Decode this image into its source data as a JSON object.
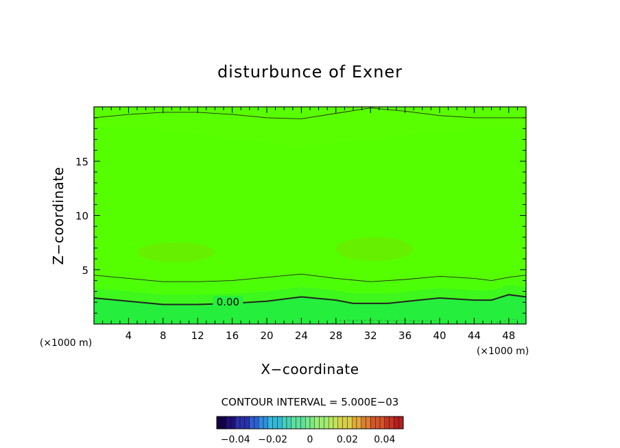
{
  "chart_data": {
    "type": "heatmap",
    "title": "disturbunce of Exner",
    "xlabel": "X−coordinate",
    "ylabel": "Z−coordinate",
    "x_unit_left": "(×1000 m)",
    "x_unit_right": "(×1000 m)",
    "xlim": [
      0,
      50
    ],
    "ylim": [
      0,
      20
    ],
    "x_ticks": [
      4,
      8,
      12,
      16,
      20,
      24,
      28,
      32,
      36,
      40,
      44,
      48
    ],
    "x_tick_labels": [
      "4",
      "8",
      "12",
      "16",
      "20",
      "24",
      "28",
      "32",
      "36",
      "40",
      "44",
      "48"
    ],
    "y_ticks": [
      5,
      10,
      15
    ],
    "y_tick_labels": [
      "5",
      "10",
      "15"
    ],
    "contour_interval_text": "CONTOUR INTERVAL = 5.000E−03",
    "contour_interval": 0.005,
    "contour_labels": [
      {
        "text": "0.00",
        "x": 15.5,
        "y": 1.95
      }
    ],
    "contour_lines": [
      {
        "level": 0.005,
        "style": "thin",
        "x": [
          0,
          4,
          8,
          12,
          16,
          20,
          24,
          28,
          32,
          36,
          40,
          44,
          48,
          50
        ],
        "y": [
          19.0,
          19.3,
          19.5,
          19.5,
          19.3,
          19.0,
          18.9,
          19.4,
          19.9,
          19.6,
          19.2,
          19.0,
          19.0,
          19.0
        ]
      },
      {
        "level": 0.005,
        "style": "thin",
        "x": [
          0,
          4,
          8,
          12,
          16,
          20,
          24,
          28,
          32,
          36,
          40,
          44,
          46,
          48,
          50
        ],
        "y": [
          4.5,
          4.2,
          3.9,
          3.9,
          4.0,
          4.3,
          4.6,
          4.2,
          3.9,
          4.1,
          4.4,
          4.2,
          4.0,
          4.3,
          4.5
        ]
      },
      {
        "level": 0.0,
        "style": "thick",
        "x": [
          0,
          4,
          8,
          12,
          16,
          20,
          24,
          28,
          30,
          34,
          40,
          44,
          46,
          48,
          50
        ],
        "y": [
          2.4,
          2.1,
          1.8,
          1.8,
          1.9,
          2.1,
          2.5,
          2.2,
          1.9,
          1.9,
          2.4,
          2.2,
          2.2,
          2.7,
          2.5
        ]
      }
    ],
    "bands": [
      {
        "name": "upper-light",
        "color": "#59ff00",
        "x": [
          0,
          8,
          16,
          24,
          32,
          40,
          48,
          50
        ],
        "top": [
          18.2,
          18.0,
          17.0,
          16.4,
          17.0,
          17.8,
          18.2,
          18.2
        ]
      },
      {
        "name": "blob-left",
        "color": "#66f000",
        "cx": 9.5,
        "cy": 6.6,
        "rx": 4.5,
        "ry": 0.9
      },
      {
        "name": "blob-right",
        "color": "#66f000",
        "cx": 32.5,
        "cy": 6.9,
        "rx": 4.5,
        "ry": 1.1
      }
    ],
    "colorbar": {
      "min": -0.05,
      "max": 0.05,
      "ticks": [
        -0.04,
        -0.02,
        0,
        0.02,
        0.04
      ],
      "tick_labels": [
        "−0.04",
        "−0.02",
        "0",
        "0.02",
        "0.04"
      ],
      "colors": [
        "#150045",
        "#1f0f77",
        "#2a30a8",
        "#2f5ed0",
        "#2f8ee0",
        "#35b8d8",
        "#47d0b8",
        "#5ee09a",
        "#7ce887",
        "#9cec74",
        "#bfe65e",
        "#d8cf4a",
        "#e0a93b",
        "#dc7e31",
        "#d2552a",
        "#c53324",
        "#b31e1f"
      ]
    },
    "colors": {
      "field_main": "#55ff00",
      "field_mid": "#4cff08",
      "field_upper": "#59ff00",
      "field_near_zero": "#3ef71c",
      "field_bottom": "#26ee3c",
      "contour_line": "#222222"
    }
  }
}
